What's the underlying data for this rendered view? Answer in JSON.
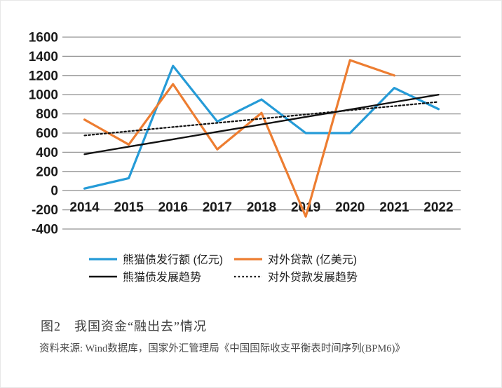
{
  "chart_data": {
    "type": "line",
    "categories": [
      "2014",
      "2015",
      "2016",
      "2017",
      "2018",
      "2019",
      "2020",
      "2021",
      "2022"
    ],
    "series": [
      {
        "key": "panda-bond-issuance",
        "name": "熊猫债发行额 (亿元)",
        "color": "#259BD7",
        "line_style": "solid",
        "stroke_width": 3.2,
        "values": [
          22,
          130,
          1300,
          720,
          950,
          600,
          600,
          1070,
          850
        ]
      },
      {
        "key": "external-loans",
        "name": "对外贷款 (亿美元)",
        "color": "#ED7D31",
        "line_style": "solid",
        "stroke_width": 3.2,
        "values": [
          740,
          480,
          1110,
          430,
          810,
          -270,
          1360,
          1200,
          null
        ]
      },
      {
        "key": "panda-bond-trend",
        "name": "熊猫债发展趋势",
        "color": "#111111",
        "line_style": "solid",
        "stroke_width": 2.4,
        "values": [
          380,
          458,
          535,
          613,
          690,
          768,
          845,
          923,
          1000
        ]
      },
      {
        "key": "external-loans-trend",
        "name": "对外贷款发展趋势",
        "color": "#111111",
        "line_style": "dotted",
        "stroke_width": 2.2,
        "values": [
          575,
          619,
          663,
          706,
          750,
          794,
          838,
          881,
          925
        ]
      }
    ],
    "ylim": [
      -400,
      1600
    ],
    "ytick_step": 200,
    "grid": true,
    "gridline_color": "#949494",
    "legend_position": "bottom",
    "title": ""
  },
  "caption": {
    "label": "图2　我国资金“融出去”情况"
  },
  "source": {
    "label": "资料来源: Wind数据库，国家外汇管理局《中国国际收支平衡表时间序列(BPM6)》"
  }
}
